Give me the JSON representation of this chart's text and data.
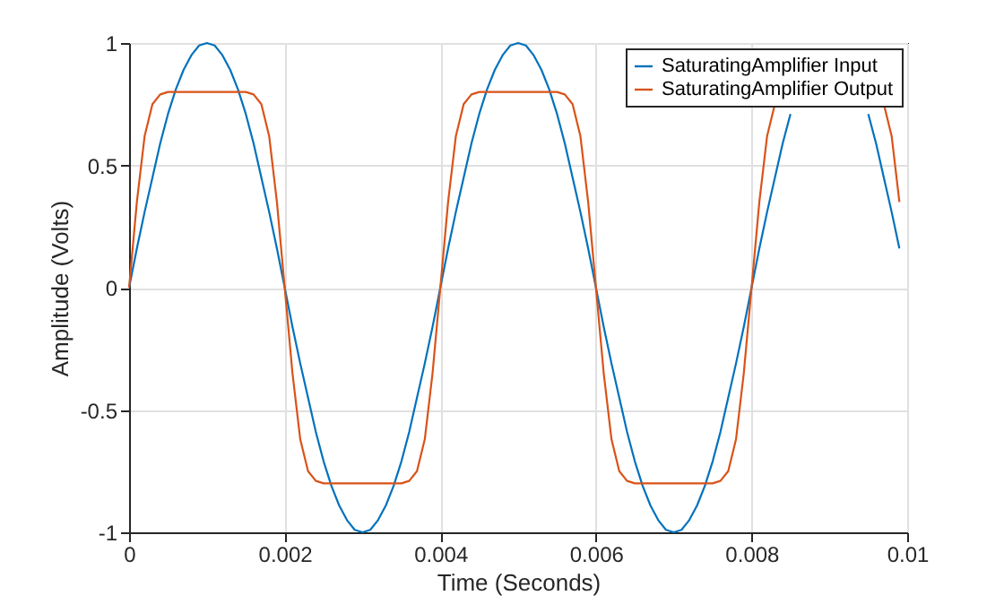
{
  "chart_data": {
    "type": "line",
    "xlabel": "Time (Seconds)",
    "ylabel": "Amplitude (Volts)",
    "x": [
      0,
      0.0001,
      0.0002,
      0.0003,
      0.0004,
      0.0005,
      0.0006,
      0.0007,
      0.0008,
      0.0009,
      0.001,
      0.0011,
      0.0012,
      0.0013,
      0.0014,
      0.0015,
      0.0016,
      0.0017,
      0.0018,
      0.0019,
      0.002,
      0.0021,
      0.0022,
      0.0023,
      0.0024,
      0.0025,
      0.0026,
      0.0027,
      0.0028,
      0.0029,
      0.003,
      0.0031,
      0.0032,
      0.0033,
      0.0034,
      0.0035,
      0.0036,
      0.0037,
      0.0038,
      0.0039,
      0.004,
      0.0041,
      0.0042,
      0.0043,
      0.0044,
      0.0045,
      0.0046,
      0.0047,
      0.0048,
      0.0049,
      0.005,
      0.0051,
      0.0052,
      0.0053,
      0.0054,
      0.0055,
      0.0056,
      0.0057,
      0.0058,
      0.0059,
      0.006,
      0.0061,
      0.0062,
      0.0063,
      0.0064,
      0.0065,
      0.0066,
      0.0067,
      0.0068,
      0.0069,
      0.007,
      0.0071,
      0.0072,
      0.0073,
      0.0074,
      0.0075,
      0.0076,
      0.0077,
      0.0078,
      0.0079,
      0.008,
      0.0081,
      0.0082,
      0.0083,
      0.0084,
      0.0085,
      0.0086,
      0.0087,
      0.0088,
      0.0089,
      0.009,
      0.0091,
      0.0092,
      0.0093,
      0.0094,
      0.0095,
      0.0096,
      0.0097,
      0.0098,
      0.0099
    ],
    "series": [
      {
        "name": "SaturatingAmplifier Input",
        "color": "#0072bd",
        "values": [
          0,
          0.16,
          0.31,
          0.45,
          0.59,
          0.71,
          0.81,
          0.89,
          0.95,
          0.99,
          1,
          0.99,
          0.95,
          0.89,
          0.81,
          0.71,
          0.59,
          0.45,
          0.31,
          0.16,
          0,
          -0.16,
          -0.31,
          -0.45,
          -0.59,
          -0.71,
          -0.81,
          -0.89,
          -0.95,
          -0.99,
          -1,
          -0.99,
          -0.95,
          -0.89,
          -0.81,
          -0.71,
          -0.59,
          -0.45,
          -0.31,
          -0.16,
          0,
          0.16,
          0.31,
          0.45,
          0.59,
          0.71,
          0.81,
          0.89,
          0.95,
          0.99,
          1,
          0.99,
          0.95,
          0.89,
          0.81,
          0.71,
          0.59,
          0.45,
          0.31,
          0.16,
          0,
          -0.16,
          -0.31,
          -0.45,
          -0.59,
          -0.71,
          -0.81,
          -0.89,
          -0.95,
          -0.99,
          -1,
          -0.99,
          -0.95,
          -0.89,
          -0.81,
          -0.71,
          -0.59,
          -0.45,
          -0.31,
          -0.16,
          0,
          0.16,
          0.31,
          0.45,
          0.59,
          0.71,
          null,
          null,
          null,
          null,
          null,
          null,
          null,
          null,
          null,
          0.71,
          0.59,
          0.45,
          0.31,
          0.16
        ]
      },
      {
        "name": "SaturatingAmplifier Output",
        "color": "#d95319",
        "values": [
          0,
          0.35,
          0.62,
          0.75,
          0.79,
          0.8,
          0.8,
          0.8,
          0.8,
          0.8,
          0.8,
          0.8,
          0.8,
          0.8,
          0.8,
          0.8,
          0.79,
          0.75,
          0.62,
          0.35,
          0,
          -0.35,
          -0.62,
          -0.75,
          -0.79,
          -0.8,
          -0.8,
          -0.8,
          -0.8,
          -0.8,
          -0.8,
          -0.8,
          -0.8,
          -0.8,
          -0.8,
          -0.8,
          -0.79,
          -0.75,
          -0.62,
          -0.35,
          0,
          0.35,
          0.62,
          0.75,
          0.79,
          0.8,
          0.8,
          0.8,
          0.8,
          0.8,
          0.8,
          0.8,
          0.8,
          0.8,
          0.8,
          0.8,
          0.79,
          0.75,
          0.62,
          0.35,
          0,
          -0.35,
          -0.62,
          -0.75,
          -0.79,
          -0.8,
          -0.8,
          -0.8,
          -0.8,
          -0.8,
          -0.8,
          -0.8,
          -0.8,
          -0.8,
          -0.8,
          -0.8,
          -0.79,
          -0.75,
          -0.62,
          -0.35,
          0,
          0.35,
          0.62,
          0.75,
          null,
          null,
          null,
          null,
          null,
          null,
          null,
          null,
          null,
          null,
          null,
          null,
          null,
          0.75,
          0.62,
          0.35
        ]
      }
    ],
    "xlim": [
      0,
      0.01
    ],
    "xticks": [
      0,
      0.002,
      0.004,
      0.006,
      0.008,
      0.01
    ],
    "ylim": [
      -1,
      1
    ],
    "yticks": [
      -1,
      -0.5,
      0,
      0.5,
      1
    ],
    "grid": true,
    "legend": "top right",
    "marker": "none",
    "line_style": "solid"
  }
}
